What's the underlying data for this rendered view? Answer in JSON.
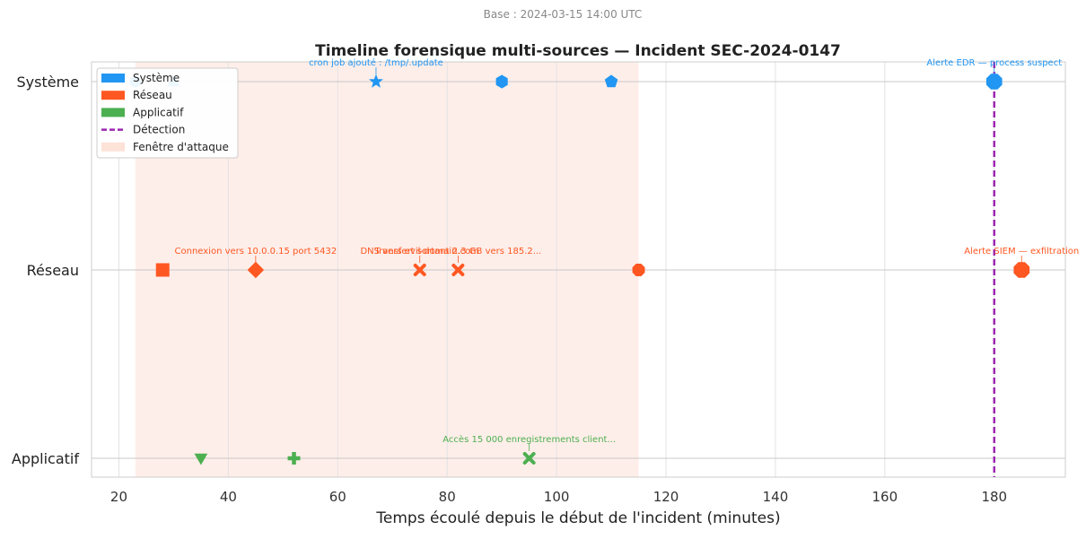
{
  "chart_data": {
    "type": "scatter",
    "suptitle": "Base : 2024-03-15 14:00 UTC",
    "title": "Timeline forensique multi-sources — Incident SEC-2024-0147",
    "xlabel": "Temps écoulé depuis le début de l'incident (minutes)",
    "ylabel": "",
    "xlim": [
      15,
      193
    ],
    "xticks": [
      20,
      40,
      60,
      80,
      100,
      120,
      140,
      160,
      180
    ],
    "categories": [
      "Système",
      "Réseau",
      "Applicatif"
    ],
    "grid": true,
    "legend_position": "top-left",
    "attack_window": {
      "start": 23,
      "end": 115,
      "label": "Fenêtre d'attaque",
      "color": "#fcd5c8"
    },
    "detection": {
      "x": 180,
      "label": "Détection",
      "color": "#9c27b0"
    },
    "series": [
      {
        "name": "Système",
        "color": "#2196f3",
        "points": [
          {
            "x": 23,
            "marker": "circle",
            "label": ""
          },
          {
            "x": 30,
            "marker": "triangle-up",
            "label": ""
          },
          {
            "x": 67,
            "marker": "star",
            "label": "cron job ajouté : /tmp/.update"
          },
          {
            "x": 90,
            "marker": "hexagon",
            "label": ""
          },
          {
            "x": 110,
            "marker": "pentagon",
            "label": ""
          },
          {
            "x": 180,
            "marker": "octagon",
            "label": "Alerte EDR — process suspect"
          }
        ]
      },
      {
        "name": "Réseau",
        "color": "#ff5722",
        "points": [
          {
            "x": 28,
            "marker": "square",
            "label": ""
          },
          {
            "x": 45,
            "marker": "diamond",
            "label": "Connexion vers 10.0.0.15 port 5432"
          },
          {
            "x": 75,
            "marker": "x",
            "label": "DNS vers evil-domain.com"
          },
          {
            "x": 82,
            "marker": "x",
            "label": "Transfert sortant 2.3 GB vers 185.2..."
          },
          {
            "x": 115,
            "marker": "octagon",
            "label": ""
          },
          {
            "x": 185,
            "marker": "octagon",
            "label": "Alerte SIEM — exfiltration"
          }
        ]
      },
      {
        "name": "Applicatif",
        "color": "#4caf50",
        "points": [
          {
            "x": 35,
            "marker": "triangle-down",
            "label": ""
          },
          {
            "x": 52,
            "marker": "plus",
            "label": ""
          },
          {
            "x": 95,
            "marker": "x",
            "label": "Accès 15 000 enregistrements client..."
          }
        ]
      }
    ]
  }
}
